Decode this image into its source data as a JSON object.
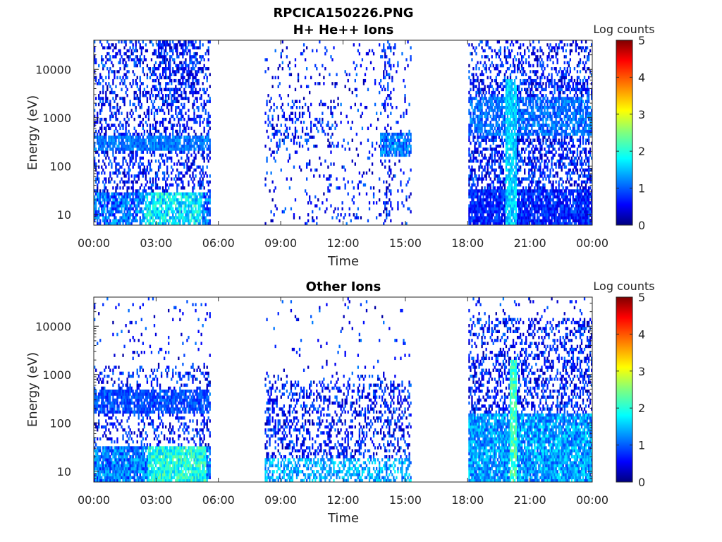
{
  "figure": {
    "title": "RPCICA150226.PNG"
  },
  "chart_data": [
    {
      "type": "heatmap",
      "title": "H+ He++ Ions",
      "xlabel": "Time",
      "ylabel": "Energy (eV)",
      "x_ticks": [
        "00:00",
        "03:00",
        "06:00",
        "09:00",
        "12:00",
        "15:00",
        "18:00",
        "21:00",
        "00:00"
      ],
      "x_range_hours": [
        0,
        24
      ],
      "y_scale": "log",
      "y_ticks": [
        {
          "value": 10,
          "label": "10"
        },
        {
          "value": 100,
          "label": "100"
        },
        {
          "value": 1000,
          "label": "1000"
        },
        {
          "value": 10000,
          "label": "10000"
        }
      ],
      "y_range": [
        6,
        40000
      ],
      "colorbar": {
        "label": "Log counts",
        "range": [
          0,
          5
        ],
        "ticks": [
          "0",
          "1",
          "2",
          "3",
          "4",
          "5"
        ],
        "colormap": "jet"
      },
      "data_intervals_hours": [
        [
          0,
          5.6
        ],
        [
          8.2,
          15.3
        ],
        [
          18.0,
          24
        ]
      ],
      "grid": false
    },
    {
      "type": "heatmap",
      "title": "Other Ions",
      "xlabel": "Time",
      "ylabel": "Energy (eV)",
      "x_ticks": [
        "00:00",
        "03:00",
        "06:00",
        "09:00",
        "12:00",
        "15:00",
        "18:00",
        "21:00",
        "00:00"
      ],
      "x_range_hours": [
        0,
        24
      ],
      "y_scale": "log",
      "y_ticks": [
        {
          "value": 10,
          "label": "10"
        },
        {
          "value": 100,
          "label": "100"
        },
        {
          "value": 1000,
          "label": "1000"
        },
        {
          "value": 10000,
          "label": "10000"
        }
      ],
      "y_range": [
        6,
        40000
      ],
      "colorbar": {
        "label": "Log counts",
        "range": [
          0,
          5
        ],
        "ticks": [
          "0",
          "1",
          "2",
          "3",
          "4",
          "5"
        ],
        "colormap": "jet"
      },
      "data_intervals_hours": [
        [
          0,
          5.6
        ],
        [
          8.2,
          15.3
        ],
        [
          18.0,
          24
        ]
      ],
      "grid": false
    }
  ]
}
